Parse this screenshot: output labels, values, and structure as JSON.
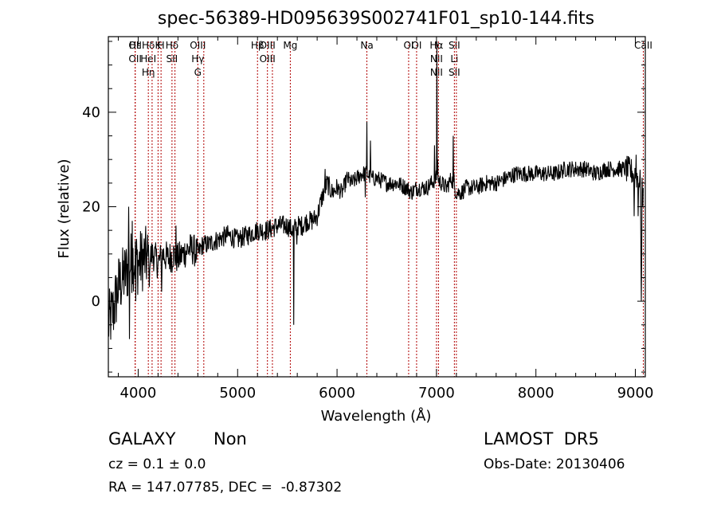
{
  "chart_data": {
    "type": "line",
    "title": "spec-56389-HD095639S002741F01_sp10-144.fits",
    "xlabel": "Wavelength (Å)",
    "ylabel": "Flux (relative)",
    "xlim": [
      3700,
      9100
    ],
    "ylim": [
      -16,
      56
    ],
    "x_ticks": [
      4000,
      5000,
      6000,
      7000,
      8000,
      9000
    ],
    "x_tick_labels": [
      "4000",
      "5000",
      "6000",
      "7000",
      "8000",
      "9000"
    ],
    "y_ticks": [
      0,
      20,
      40
    ],
    "y_tick_labels": [
      "0",
      "20",
      "40"
    ],
    "x_minor_step": 200,
    "y_minor_step": 5,
    "grid": false,
    "line_color": "#000000",
    "marker_color": "#b00000",
    "series": [
      {
        "x": [
          3700,
          3750,
          3800,
          3850,
          3900,
          3950,
          4000,
          4050,
          4100,
          4150,
          4200,
          4250,
          4300,
          4350,
          4400,
          4450,
          4500,
          4550,
          4600,
          4650,
          4700,
          4800,
          4900,
          5000,
          5100,
          5200,
          5300,
          5400,
          5500,
          5550,
          5600,
          5650,
          5700,
          5750,
          5800,
          5850,
          5900,
          5950,
          6000,
          6050,
          6100,
          6150,
          6200,
          6250,
          6300,
          6350,
          6400,
          6500,
          6600,
          6700,
          6750,
          6800,
          6850,
          6900,
          6950,
          7000,
          7050,
          7100,
          7150,
          7200,
          7250,
          7300,
          7400,
          7500,
          7600,
          7700,
          7800,
          7900,
          8000,
          8100,
          8200,
          8300,
          8400,
          8500,
          8600,
          8700,
          8800,
          8900,
          9000,
          9050,
          9080
        ],
        "y": [
          -5,
          -2,
          3,
          5,
          7,
          9,
          8,
          9,
          9,
          10,
          8,
          10,
          9,
          10,
          9,
          10,
          11,
          11,
          10,
          12,
          12,
          13,
          14,
          13,
          14,
          15,
          15,
          16,
          16,
          15,
          16,
          16,
          17,
          17,
          18,
          22,
          25,
          23,
          24,
          23,
          26,
          25,
          26,
          27,
          27,
          26,
          26,
          25,
          25,
          24,
          23,
          24,
          24,
          24,
          25,
          26,
          25,
          24,
          26,
          23,
          23,
          24,
          24,
          25,
          25,
          26,
          27,
          27,
          27,
          27,
          27,
          28,
          28,
          28,
          27,
          28,
          28,
          28,
          27,
          25,
          22
        ]
      }
    ],
    "spikes": [
      {
        "x": 3905,
        "y": 20
      },
      {
        "x": 3912,
        "y": -8
      },
      {
        "x": 3940,
        "y": 17
      },
      {
        "x": 3975,
        "y": 0
      },
      {
        "x": 4105,
        "y": 12
      },
      {
        "x": 4112,
        "y": 3
      },
      {
        "x": 4235,
        "y": 2
      },
      {
        "x": 4340,
        "y": 6
      },
      {
        "x": 4380,
        "y": 16
      },
      {
        "x": 5563,
        "y": -5
      },
      {
        "x": 5598,
        "y": 12
      },
      {
        "x": 5880,
        "y": 28
      },
      {
        "x": 6285,
        "y": 22
      },
      {
        "x": 6300,
        "y": 38
      },
      {
        "x": 6335,
        "y": 34
      },
      {
        "x": 6980,
        "y": 33
      },
      {
        "x": 7004,
        "y": 55
      },
      {
        "x": 7012,
        "y": 30
      },
      {
        "x": 7167,
        "y": 35
      },
      {
        "x": 7178,
        "y": 27
      },
      {
        "x": 8990,
        "y": 18
      },
      {
        "x": 9010,
        "y": 31
      },
      {
        "x": 9030,
        "y": 18
      },
      {
        "x": 9058,
        "y": 10
      },
      {
        "x": 9062,
        "y": 0
      },
      {
        "x": 9066,
        "y": 10
      }
    ],
    "line_markers": [
      {
        "wl": 3970,
        "labels": [
          "OII",
          "OII"
        ]
      },
      {
        "wl": 3970,
        "labels": [
          "Hε"
        ]
      },
      {
        "wl": 4102,
        "labels": [
          "Hδ",
          "HeI",
          "Hη"
        ]
      },
      {
        "wl": 4140,
        "labels": [
          ""
        ]
      },
      {
        "wl": 4200,
        "labels": [
          "K"
        ]
      },
      {
        "wl": 4230,
        "labels": [
          "H"
        ]
      },
      {
        "wl": 4340,
        "labels": [
          "Hδ",
          "SII"
        ]
      },
      {
        "wl": 4370,
        "labels": [
          ""
        ]
      },
      {
        "wl": 4600,
        "labels": [
          "OIII",
          "Hγ",
          "G"
        ]
      },
      {
        "wl": 4660,
        "labels": [
          ""
        ]
      },
      {
        "wl": 5200,
        "labels": [
          "Hβ"
        ]
      },
      {
        "wl": 5300,
        "labels": [
          "OIII",
          "OIII"
        ]
      },
      {
        "wl": 5350,
        "labels": [
          ""
        ]
      },
      {
        "wl": 5530,
        "labels": [
          "Mg"
        ]
      },
      {
        "wl": 6300,
        "labels": [
          "Na"
        ]
      },
      {
        "wl": 6720,
        "labels": [
          "OI"
        ]
      },
      {
        "wl": 6800,
        "labels": [
          "OI"
        ]
      },
      {
        "wl": 7000,
        "labels": [
          "Hα",
          "NII",
          "NII"
        ]
      },
      {
        "wl": 7020,
        "labels": [
          ""
        ]
      },
      {
        "wl": 7180,
        "labels": [
          "SII",
          "Li",
          "SII"
        ]
      },
      {
        "wl": 7200,
        "labels": [
          ""
        ]
      },
      {
        "wl": 9080,
        "labels": [
          "CaII"
        ]
      }
    ]
  },
  "info": {
    "class_label": "GALAXY",
    "subclass_label": "Non",
    "survey_label": "LAMOST  DR5",
    "redshift_text": "cz = 0.1 ± 0.0",
    "obs_date_text": "Obs-Date: 20130406",
    "coords_text": "RA = 147.07785, DEC =  -0.87302"
  }
}
